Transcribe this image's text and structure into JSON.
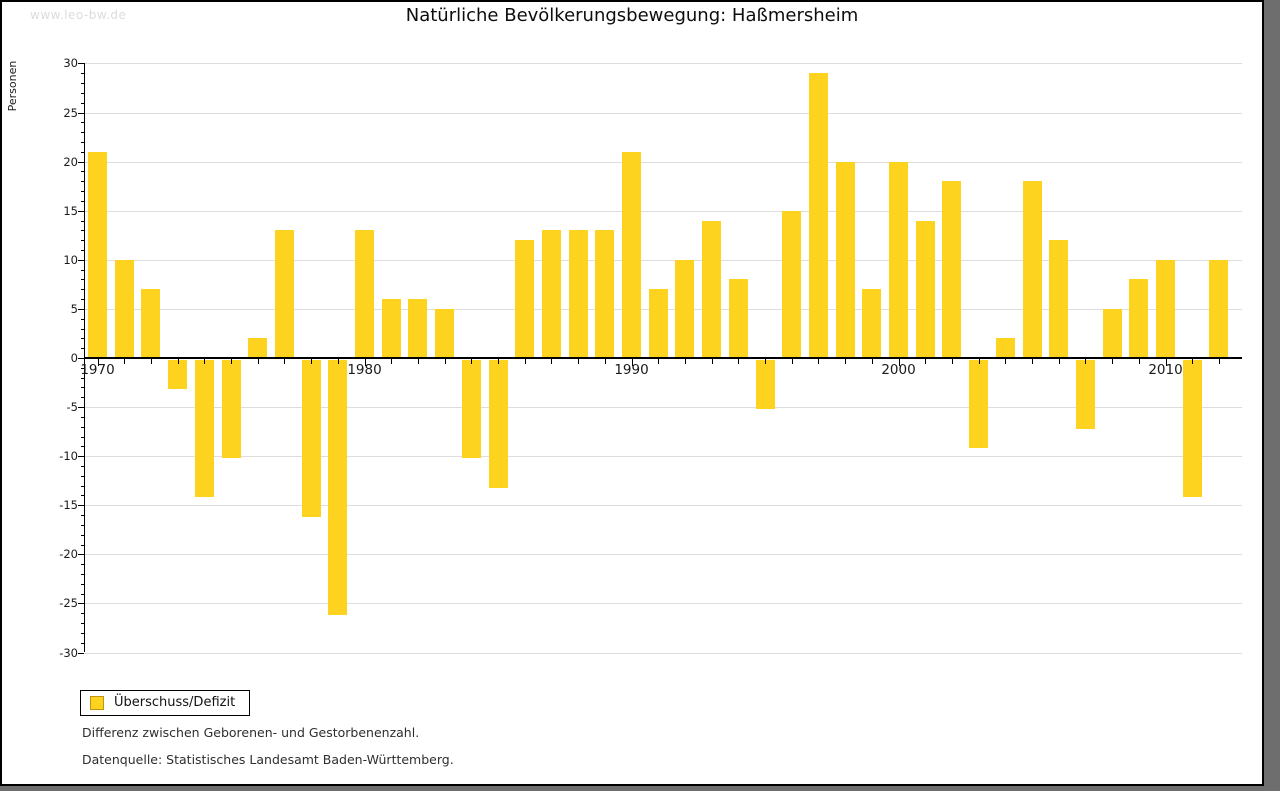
{
  "page": {
    "watermark": "www.leo-bw.de",
    "shadow_color": "#6e6e6e"
  },
  "chart_data": {
    "type": "bar",
    "title": "Natürliche Bevölkerungsbewegung: Haßmersheim",
    "xlabel": "",
    "ylabel": "Personen",
    "categories": [
      1970,
      1971,
      1972,
      1973,
      1974,
      1975,
      1976,
      1977,
      1978,
      1979,
      1980,
      1981,
      1982,
      1983,
      1984,
      1985,
      1986,
      1987,
      1988,
      1989,
      1990,
      1991,
      1992,
      1993,
      1994,
      1995,
      1996,
      1997,
      1998,
      1999,
      2000,
      2001,
      2002,
      2003,
      2004,
      2005,
      2006,
      2007,
      2008,
      2009,
      2010,
      2011,
      2012
    ],
    "values": [
      21,
      10,
      7,
      -3,
      -14,
      -10,
      2,
      13,
      -16,
      -26,
      13,
      6,
      6,
      5,
      -10,
      -13,
      12,
      13,
      13,
      13,
      21,
      7,
      10,
      14,
      8,
      -5,
      15,
      29,
      20,
      7,
      20,
      14,
      18,
      -9,
      2,
      18,
      12,
      -7,
      5,
      8,
      10,
      -14,
      10
    ],
    "ylim": [
      -30,
      30
    ],
    "ytick_step": 5,
    "ytick_labels": [
      "30",
      "25",
      "20",
      "15",
      "10",
      "5",
      "0",
      "-5",
      "-10",
      "-15",
      "-20",
      "-25",
      "-30"
    ],
    "xtick_labels": [
      "1970",
      "1980",
      "1990",
      "2000",
      "2010"
    ],
    "grid": true,
    "bar_color": "#FDD320",
    "legend_position": "bottom-left",
    "legend_entries": [
      "Überschuss/Defizit"
    ]
  },
  "legend": {
    "label": "Überschuss/Defizit",
    "swatch_color": "#FDD320",
    "swatch_border_color": "#BD9415"
  },
  "footnotes": [
    "Differenz zwischen Geborenen- und Gestorbenenzahl.",
    "Datenquelle: Statistisches Landesamt Baden-Württemberg."
  ]
}
